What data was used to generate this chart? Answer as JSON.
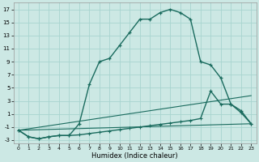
{
  "xlabel": "Humidex (Indice chaleur)",
  "bg_color": "#cce8e4",
  "grid_color": "#a8d4cf",
  "line_color": "#1a6b5e",
  "xlim": [
    -0.5,
    23.5
  ],
  "ylim": [
    -3.5,
    18
  ],
  "xticks": [
    0,
    1,
    2,
    3,
    4,
    5,
    6,
    7,
    8,
    9,
    10,
    11,
    12,
    13,
    14,
    15,
    16,
    17,
    18,
    19,
    20,
    21,
    22,
    23
  ],
  "yticks": [
    -3,
    -1,
    1,
    3,
    5,
    7,
    9,
    11,
    13,
    15,
    17
  ],
  "line1_x": [
    0,
    1,
    2,
    3,
    4,
    5,
    6,
    7,
    8,
    9,
    10,
    11,
    12,
    13,
    14,
    15,
    16,
    17,
    18,
    19,
    20,
    21,
    22,
    23
  ],
  "line1_y": [
    -1.5,
    -2.5,
    -2.8,
    -2.5,
    -2.3,
    -2.3,
    -0.5,
    5.5,
    9.0,
    9.5,
    11.5,
    13.5,
    15.5,
    15.5,
    16.5,
    17.0,
    16.5,
    15.5,
    9.0,
    8.5,
    6.5,
    2.5,
    1.5,
    -0.5
  ],
  "line2_x": [
    0,
    1,
    2,
    3,
    4,
    5,
    6,
    7,
    8,
    9,
    10,
    11,
    12,
    13,
    14,
    15,
    16,
    17,
    18,
    19,
    20,
    21,
    22,
    23
  ],
  "line2_y": [
    -1.5,
    -2.5,
    -2.8,
    -2.5,
    -2.3,
    -2.3,
    -2.2,
    -2.0,
    -1.8,
    -1.6,
    -1.4,
    -1.2,
    -1.0,
    -0.8,
    -0.6,
    -0.4,
    -0.2,
    0.0,
    0.3,
    4.5,
    2.5,
    2.5,
    1.2,
    -0.5
  ],
  "line3_x": [
    0,
    23
  ],
  "line3_y": [
    -1.5,
    3.8
  ],
  "line4_x": [
    0,
    23
  ],
  "line4_y": [
    -1.5,
    -0.5
  ]
}
